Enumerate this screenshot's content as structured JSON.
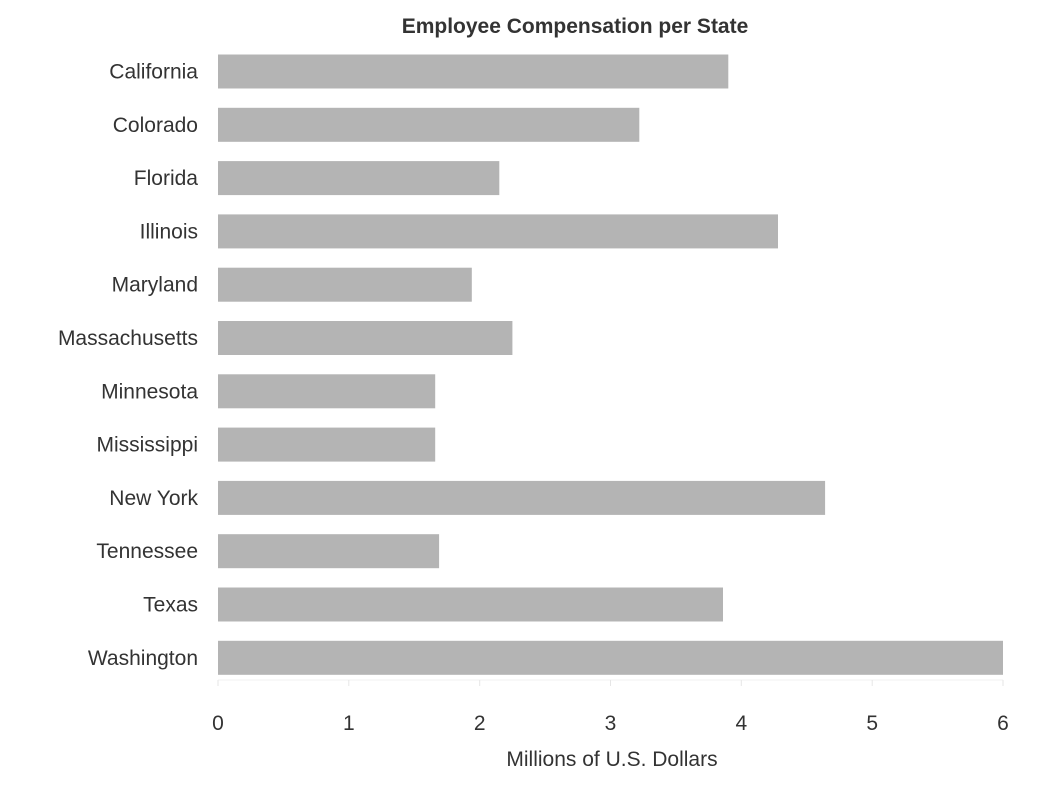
{
  "chart_data": {
    "type": "bar",
    "orientation": "horizontal",
    "title": "Employee Compensation per State",
    "xlabel": "Millions of U.S. Dollars",
    "ylabel": "",
    "xlim": [
      0,
      6
    ],
    "x_ticks": [
      "0",
      "1",
      "2",
      "3",
      "4",
      "5",
      "6"
    ],
    "grid": false,
    "bar_color": "#b4b4b4",
    "categories": [
      "California",
      "Colorado",
      "Florida",
      "Illinois",
      "Maryland",
      "Massachusetts",
      "Minnesota",
      "Mississippi",
      "New York",
      "Tennessee",
      "Texas",
      "Washington"
    ],
    "values": [
      3.9,
      3.22,
      2.15,
      4.28,
      1.94,
      2.25,
      1.66,
      1.66,
      4.64,
      1.69,
      3.86,
      6.0
    ]
  }
}
